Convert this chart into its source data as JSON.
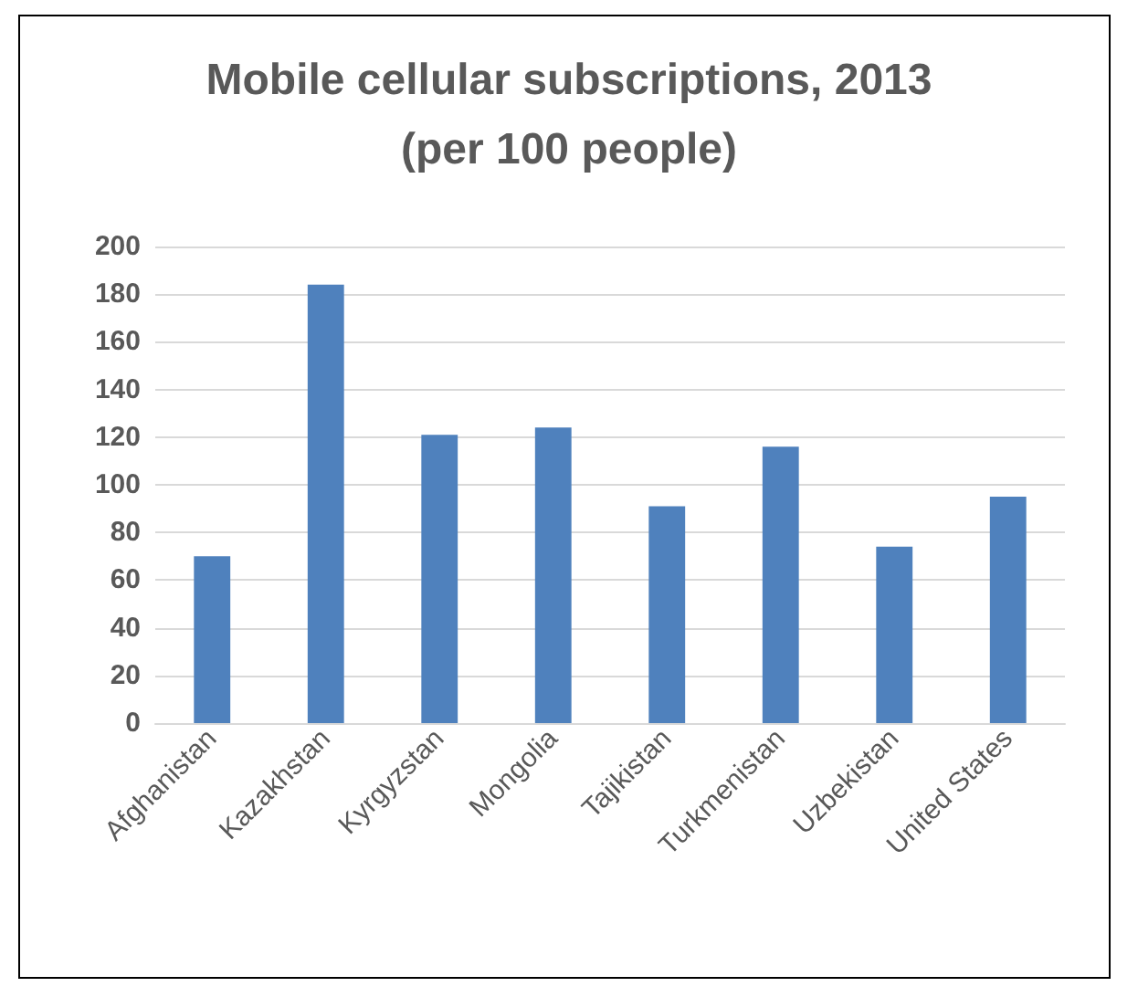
{
  "chart_data": {
    "type": "bar",
    "title": "Mobile cellular subscriptions, 2013\n(per 100 people)",
    "categories": [
      "Afghanistan",
      "Kazakhstan",
      "Kyrgyzstan",
      "Mongolia",
      "Tajikistan",
      "Turkmenistan",
      "Uzbekistan",
      "United States"
    ],
    "values": [
      70,
      184,
      121,
      124,
      91,
      116,
      74,
      95
    ],
    "color": "#4f81bd",
    "ylim": [
      0,
      200
    ],
    "yticks": [
      0,
      20,
      40,
      60,
      80,
      100,
      120,
      140,
      160,
      180,
      200
    ],
    "grid": "y"
  }
}
